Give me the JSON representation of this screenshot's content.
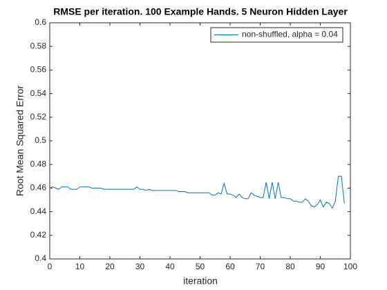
{
  "chart_data": {
    "type": "line",
    "title": "RMSE per iteration. 100 Example Hands. 5 Neuron Hidden Layer",
    "xlabel": "iteration",
    "ylabel": "Root Mean Squared Error",
    "x": [
      0,
      1,
      2,
      3,
      4,
      5,
      6,
      7,
      8,
      9,
      10,
      11,
      12,
      13,
      14,
      15,
      16,
      17,
      18,
      19,
      20,
      21,
      22,
      23,
      24,
      25,
      26,
      27,
      28,
      29,
      30,
      31,
      32,
      33,
      34,
      35,
      36,
      37,
      38,
      39,
      40,
      41,
      42,
      43,
      44,
      45,
      46,
      47,
      48,
      49,
      50,
      51,
      52,
      53,
      54,
      55,
      56,
      57,
      58,
      59,
      60,
      61,
      62,
      63,
      64,
      65,
      66,
      67,
      68,
      69,
      70,
      71,
      72,
      73,
      74,
      75,
      76,
      77,
      78,
      79,
      80,
      81,
      82,
      83,
      84,
      85,
      86,
      87,
      88,
      89,
      90,
      91,
      92,
      93,
      94,
      95,
      96,
      97,
      98
    ],
    "series": [
      {
        "name": "non-shuffled, alpha = 0.04",
        "color": "#0072bd",
        "values": [
          0.46,
          0.461,
          0.46,
          0.459,
          0.461,
          0.461,
          0.461,
          0.459,
          0.459,
          0.459,
          0.461,
          0.461,
          0.461,
          0.461,
          0.46,
          0.46,
          0.46,
          0.46,
          0.459,
          0.459,
          0.459,
          0.459,
          0.459,
          0.459,
          0.459,
          0.459,
          0.459,
          0.459,
          0.459,
          0.461,
          0.459,
          0.459,
          0.458,
          0.459,
          0.458,
          0.458,
          0.458,
          0.458,
          0.458,
          0.458,
          0.458,
          0.458,
          0.458,
          0.457,
          0.457,
          0.457,
          0.456,
          0.456,
          0.456,
          0.456,
          0.456,
          0.456,
          0.456,
          0.456,
          0.454,
          0.454,
          0.456,
          0.455,
          0.464,
          0.455,
          0.455,
          0.454,
          0.452,
          0.455,
          0.452,
          0.451,
          0.451,
          0.456,
          0.454,
          0.453,
          0.452,
          0.452,
          0.465,
          0.451,
          0.465,
          0.451,
          0.465,
          0.452,
          0.452,
          0.451,
          0.451,
          0.449,
          0.449,
          0.448,
          0.448,
          0.451,
          0.449,
          0.445,
          0.444,
          0.446,
          0.45,
          0.444,
          0.448,
          0.447,
          0.443,
          0.449,
          0.47,
          0.47,
          0.447
        ]
      }
    ],
    "xlim": [
      0,
      100
    ],
    "xticks": [
      0,
      10,
      20,
      30,
      40,
      50,
      60,
      70,
      80,
      90,
      100
    ],
    "ylim": [
      0.4,
      0.6
    ],
    "yticks": [
      0.4,
      0.42,
      0.44,
      0.46,
      0.48,
      0.5,
      0.52,
      0.54,
      0.56,
      0.58,
      0.6
    ],
    "legend": "northeast",
    "grid": false
  }
}
